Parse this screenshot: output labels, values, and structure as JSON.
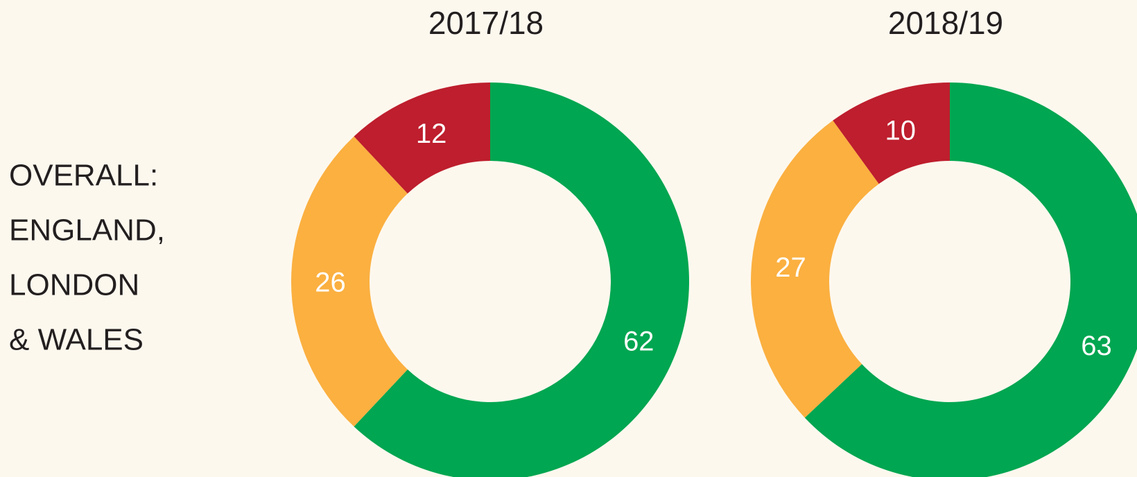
{
  "row_label": [
    "OVERALL:",
    "ENGLAND,",
    "LONDON",
    "& WALES"
  ],
  "chart_data": [
    {
      "type": "donut",
      "title": "2017/18",
      "values": [
        62,
        26,
        12
      ],
      "colors": [
        "#00a651",
        "#fbb040",
        "#be1e2d"
      ]
    },
    {
      "type": "donut",
      "title": "2018/19",
      "values": [
        63,
        27,
        10
      ],
      "colors": [
        "#00a651",
        "#fbb040",
        "#be1e2d"
      ]
    }
  ]
}
